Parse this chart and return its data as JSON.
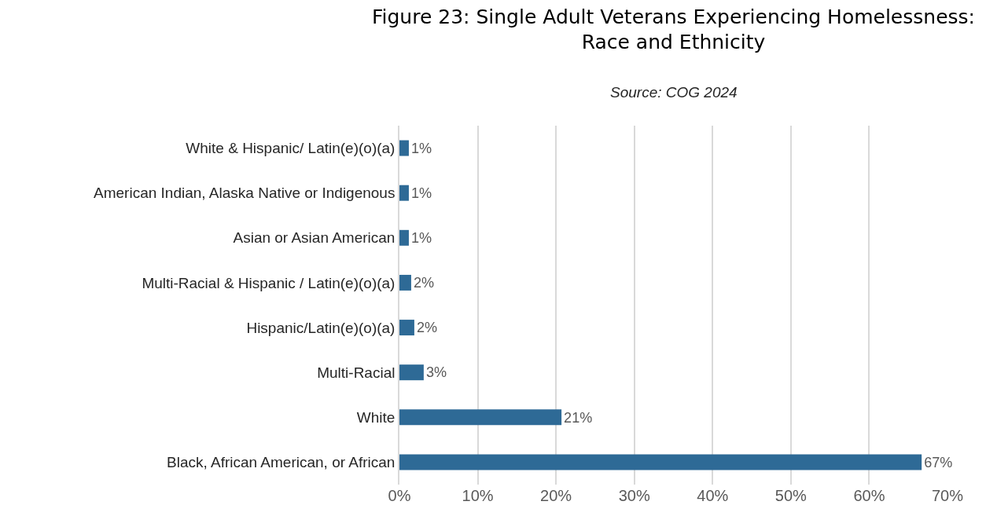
{
  "chart_data": {
    "type": "bar",
    "orientation": "horizontal",
    "title": "Figure 23: Single Adult Veterans Experiencing Homelessness:\nRace and Ethnicity",
    "annotations": [
      "Source: COG 2024"
    ],
    "categories": [
      "White & Hispanic/ Latin(e)(o)(a)",
      "American Indian, Alaska Native or Indigenous",
      "Asian or Asian American",
      "Multi-Racial & Hispanic / Latin(e)(o)(a)",
      "Hispanic/Latin(e)(o)(a)",
      "Multi-Racial",
      "White",
      "Black, African American, or African"
    ],
    "values": [
      1.2,
      1.2,
      1.2,
      1.5,
      1.9,
      3.1,
      20.7,
      66.7
    ],
    "value_labels": [
      "1%",
      "1%",
      "1%",
      "2%",
      "2%",
      "3%",
      "21%",
      "67%"
    ],
    "color": "#2e6a96",
    "xlim": [
      0,
      70
    ],
    "xticks": [
      {
        "value": 0,
        "label": "0%"
      },
      {
        "value": 10,
        "label": "10%"
      },
      {
        "value": 20,
        "label": "20%"
      },
      {
        "value": 30,
        "label": "30%"
      },
      {
        "value": 40,
        "label": "40%"
      },
      {
        "value": 50,
        "label": "50%"
      },
      {
        "value": 60,
        "label": "60%"
      },
      {
        "value": 70,
        "label": "70%"
      }
    ],
    "grid": "x",
    "legend": false
  }
}
